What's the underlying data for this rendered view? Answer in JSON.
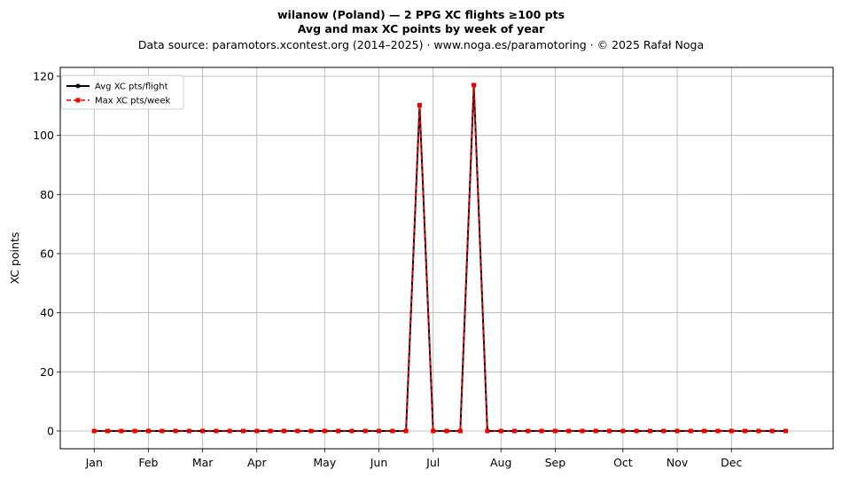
{
  "header": {
    "title_line1": "wilanow (Poland)  —  2 PPG XC flights ≥100 pts",
    "title_line2": "Avg and max XC points by week of year",
    "source": "Data source: paramotors.xcontest.org (2014–2025)  ·  www.noga.es/paramotoring  ·  © 2025 Rafał Noga"
  },
  "chart_data": {
    "type": "line",
    "xlabel": "",
    "ylabel": "XC points",
    "ylim": [
      -6,
      123
    ],
    "xlim": [
      -2.5,
      54.5
    ],
    "grid": true,
    "legend_position": "upper-left",
    "x_ticks": [
      {
        "label": "Jan",
        "week": 0
      },
      {
        "label": "Feb",
        "week": 4
      },
      {
        "label": "Mar",
        "week": 8
      },
      {
        "label": "Apr",
        "week": 12
      },
      {
        "label": "May",
        "week": 17
      },
      {
        "label": "Jun",
        "week": 21
      },
      {
        "label": "Jul",
        "week": 25
      },
      {
        "label": "Aug",
        "week": 30
      },
      {
        "label": "Sep",
        "week": 34
      },
      {
        "label": "Oct",
        "week": 39
      },
      {
        "label": "Nov",
        "week": 43
      },
      {
        "label": "Dec",
        "week": 47
      }
    ],
    "y_ticks": [
      0,
      20,
      40,
      60,
      80,
      100,
      120
    ],
    "x": [
      0,
      1,
      2,
      3,
      4,
      5,
      6,
      7,
      8,
      9,
      10,
      11,
      12,
      13,
      14,
      15,
      16,
      17,
      18,
      19,
      20,
      21,
      22,
      23,
      24,
      25,
      26,
      27,
      28,
      29,
      30,
      31,
      32,
      33,
      34,
      35,
      36,
      37,
      38,
      39,
      40,
      41,
      42,
      43,
      44,
      45,
      46,
      47,
      48,
      49,
      50,
      51
    ],
    "series": [
      {
        "name": "Avg XC pts/flight",
        "color": "#000000",
        "style": "solid-dot",
        "values": [
          0,
          0,
          0,
          0,
          0,
          0,
          0,
          0,
          0,
          0,
          0,
          0,
          0,
          0,
          0,
          0,
          0,
          0,
          0,
          0,
          0,
          0,
          0,
          0,
          110.2,
          0,
          0,
          0,
          117,
          0,
          0,
          0,
          0,
          0,
          0,
          0,
          0,
          0,
          0,
          0,
          0,
          0,
          0,
          0,
          0,
          0,
          0,
          0,
          0,
          0,
          0,
          0
        ]
      },
      {
        "name": "Max XC pts/week",
        "color": "#ee0000",
        "style": "dashed-square",
        "values": [
          0,
          0,
          0,
          0,
          0,
          0,
          0,
          0,
          0,
          0,
          0,
          0,
          0,
          0,
          0,
          0,
          0,
          0,
          0,
          0,
          0,
          0,
          0,
          0,
          110.2,
          0,
          0,
          0,
          117,
          0,
          0,
          0,
          0,
          0,
          0,
          0,
          0,
          0,
          0,
          0,
          0,
          0,
          0,
          0,
          0,
          0,
          0,
          0,
          0,
          0,
          0,
          0
        ]
      }
    ]
  }
}
